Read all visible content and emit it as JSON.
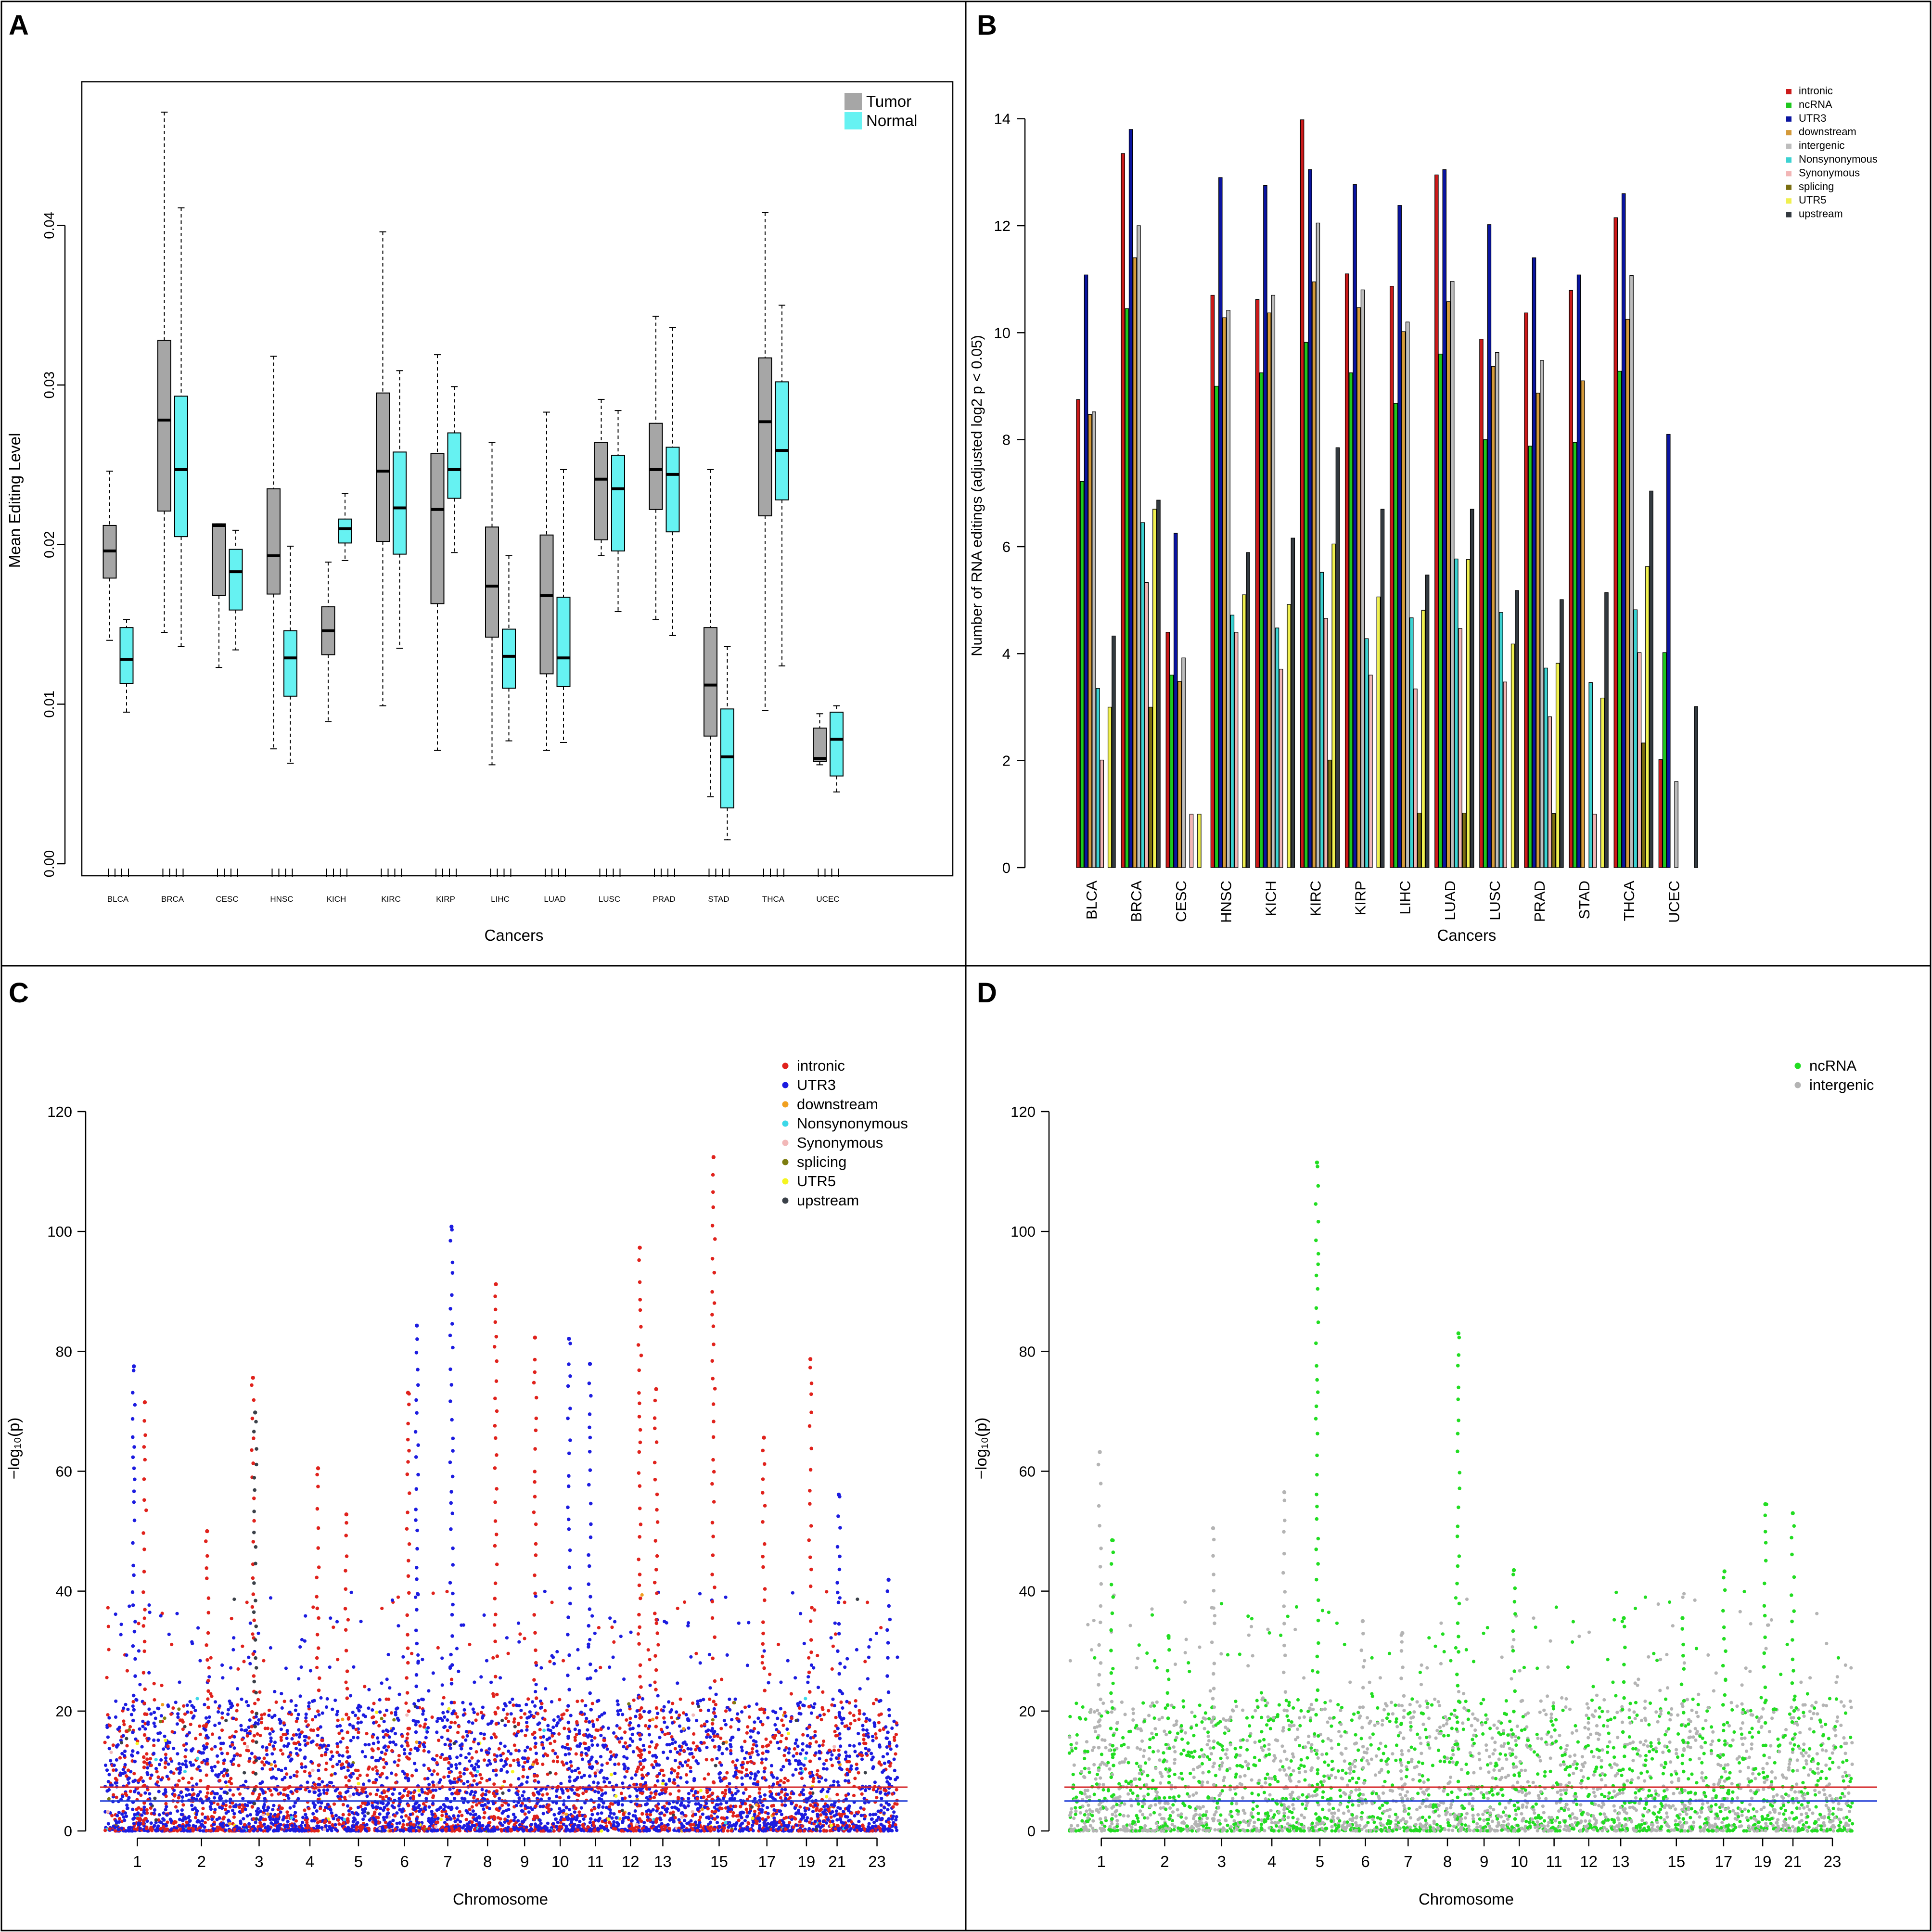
{
  "figure": {
    "panel_labels": [
      "A",
      "B",
      "C",
      "D"
    ]
  },
  "chart_data": [
    {
      "panel": "A",
      "type": "boxplot",
      "title": "",
      "xlabel": "Cancers",
      "ylabel": "Mean Editing Level",
      "ylim": [
        0,
        0.049
      ],
      "yticks": [
        0.0,
        0.01,
        0.02,
        0.03,
        0.04
      ],
      "ytick_labels": [
        "0.00",
        "0.01",
        "0.02",
        "0.03",
        "0.04"
      ],
      "legend": {
        "position": "top-right",
        "entries": [
          {
            "name": "Tumor",
            "color": "#a6a6a6"
          },
          {
            "name": "Normal",
            "color": "#66f2f2"
          }
        ]
      },
      "categories": [
        "BLCA",
        "BRCA",
        "CESC",
        "HNSC",
        "KICH",
        "KIRC",
        "KIRP",
        "LIHC",
        "LUAD",
        "LUSC",
        "PRAD",
        "STAD",
        "THCA",
        "UCEC"
      ],
      "series": [
        {
          "name": "Tumor",
          "color": "#a6a6a6",
          "boxes": [
            {
              "min": 0.014,
              "q1": 0.0179,
              "median": 0.0196,
              "q3": 0.0212,
              "max": 0.0246
            },
            {
              "min": 0.0145,
              "q1": 0.0221,
              "median": 0.0278,
              "q3": 0.0328,
              "max": 0.0471
            },
            {
              "min": 0.0123,
              "q1": 0.0168,
              "median": 0.0212,
              "q3": 0.0213,
              "max": 0.0213
            },
            {
              "min": 0.0072,
              "q1": 0.0169,
              "median": 0.0193,
              "q3": 0.0235,
              "max": 0.0318
            },
            {
              "min": 0.0089,
              "q1": 0.0131,
              "median": 0.0146,
              "q3": 0.0161,
              "max": 0.0189
            },
            {
              "min": 0.0099,
              "q1": 0.0202,
              "median": 0.0246,
              "q3": 0.0295,
              "max": 0.0396
            },
            {
              "min": 0.0071,
              "q1": 0.0163,
              "median": 0.0222,
              "q3": 0.0257,
              "max": 0.0319
            },
            {
              "min": 0.0062,
              "q1": 0.0142,
              "median": 0.0174,
              "q3": 0.0211,
              "max": 0.0264
            },
            {
              "min": 0.0071,
              "q1": 0.0119,
              "median": 0.0168,
              "q3": 0.0206,
              "max": 0.0283
            },
            {
              "min": 0.0193,
              "q1": 0.0203,
              "median": 0.0241,
              "q3": 0.0264,
              "max": 0.0291
            },
            {
              "min": 0.0153,
              "q1": 0.0222,
              "median": 0.0247,
              "q3": 0.0276,
              "max": 0.0343
            },
            {
              "min": 0.0042,
              "q1": 0.008,
              "median": 0.0112,
              "q3": 0.0148,
              "max": 0.0247
            },
            {
              "min": 0.0096,
              "q1": 0.0218,
              "median": 0.0277,
              "q3": 0.0317,
              "max": 0.0408
            },
            {
              "min": 0.0062,
              "q1": 0.0064,
              "median": 0.0066,
              "q3": 0.0085,
              "max": 0.0094
            }
          ]
        },
        {
          "name": "Normal",
          "color": "#66f2f2",
          "boxes": [
            {
              "min": 0.0095,
              "q1": 0.0113,
              "median": 0.0128,
              "q3": 0.0148,
              "max": 0.0153
            },
            {
              "min": 0.0136,
              "q1": 0.0205,
              "median": 0.0247,
              "q3": 0.0293,
              "max": 0.0411
            },
            {
              "min": 0.0134,
              "q1": 0.0159,
              "median": 0.0183,
              "q3": 0.0197,
              "max": 0.0209
            },
            {
              "min": 0.0063,
              "q1": 0.0105,
              "median": 0.0129,
              "q3": 0.0146,
              "max": 0.0199
            },
            {
              "min": 0.019,
              "q1": 0.0201,
              "median": 0.021,
              "q3": 0.0216,
              "max": 0.0232
            },
            {
              "min": 0.0135,
              "q1": 0.0194,
              "median": 0.0223,
              "q3": 0.0258,
              "max": 0.0309
            },
            {
              "min": 0.0195,
              "q1": 0.0229,
              "median": 0.0247,
              "q3": 0.027,
              "max": 0.0299
            },
            {
              "min": 0.0077,
              "q1": 0.011,
              "median": 0.013,
              "q3": 0.0147,
              "max": 0.0193
            },
            {
              "min": 0.0076,
              "q1": 0.0111,
              "median": 0.0129,
              "q3": 0.0167,
              "max": 0.0247
            },
            {
              "min": 0.0158,
              "q1": 0.0196,
              "median": 0.0235,
              "q3": 0.0256,
              "max": 0.0284
            },
            {
              "min": 0.0143,
              "q1": 0.0208,
              "median": 0.0244,
              "q3": 0.0261,
              "max": 0.0336
            },
            {
              "min": 0.0015,
              "q1": 0.0035,
              "median": 0.0067,
              "q3": 0.0097,
              "max": 0.0136
            },
            {
              "min": 0.0124,
              "q1": 0.0228,
              "median": 0.0259,
              "q3": 0.0302,
              "max": 0.035
            },
            {
              "min": 0.0045,
              "q1": 0.0055,
              "median": 0.0078,
              "q3": 0.0095,
              "max": 0.0099
            }
          ]
        }
      ]
    },
    {
      "panel": "B",
      "type": "bar",
      "title": "",
      "xlabel": "Cancers",
      "ylabel": "Number of RNA editings (adjusted log2 p < 0.05)",
      "ylim": [
        0,
        14.6
      ],
      "yticks": [
        0,
        2,
        4,
        6,
        8,
        10,
        12,
        14
      ],
      "ytick_labels": [
        "0",
        "2",
        "4",
        "6",
        "8",
        "10",
        "12",
        "14"
      ],
      "legend": {
        "position": "top-right"
      },
      "categories": [
        "BLCA",
        "BRCA",
        "CESC",
        "HNSC",
        "KICH",
        "KIRC",
        "KIRP",
        "LIHC",
        "LUAD",
        "LUSC",
        "PRAD",
        "STAD",
        "THCA",
        "UCEC"
      ],
      "series": [
        {
          "name": "intronic",
          "color": "#cc1a1a",
          "values": [
            8.75,
            13.35,
            4.4,
            10.7,
            10.62,
            13.98,
            11.1,
            10.87,
            12.95,
            9.88,
            10.37,
            10.79,
            12.15,
            2.02
          ]
        },
        {
          "name": "ncRNA",
          "color": "#1ec81e",
          "values": [
            7.22,
            10.45,
            3.6,
            9.0,
            9.25,
            9.82,
            9.25,
            8.68,
            9.6,
            8.0,
            7.88,
            7.95,
            9.28,
            4.02
          ]
        },
        {
          "name": "UTR3",
          "color": "#0a14a0",
          "values": [
            11.08,
            13.8,
            6.25,
            12.9,
            12.75,
            13.05,
            12.77,
            12.38,
            13.05,
            12.02,
            11.4,
            11.08,
            12.6,
            8.1
          ]
        },
        {
          "name": "downstream",
          "color": "#d49a3a",
          "values": [
            8.47,
            11.4,
            3.48,
            10.28,
            10.37,
            10.95,
            10.47,
            10.02,
            10.58,
            9.37,
            8.87,
            9.1,
            10.25,
            0
          ]
        },
        {
          "name": "intergenic",
          "color": "#bdbdbd",
          "values": [
            8.52,
            12.0,
            3.92,
            10.42,
            10.7,
            12.05,
            10.8,
            10.2,
            10.96,
            9.63,
            9.48,
            0,
            11.07,
            1.61
          ]
        },
        {
          "name": "Nonsynonymous",
          "color": "#3cd2d2",
          "values": [
            3.35,
            6.45,
            0,
            4.72,
            4.48,
            5.52,
            4.28,
            4.67,
            5.77,
            4.77,
            3.73,
            3.46,
            4.82,
            0
          ]
        },
        {
          "name": "Synonymous",
          "color": "#f2b6b6",
          "values": [
            2.01,
            5.33,
            1.0,
            4.4,
            3.71,
            4.66,
            3.6,
            3.34,
            4.47,
            3.47,
            2.82,
            1.0,
            4.02,
            0
          ]
        },
        {
          "name": "splicing",
          "color": "#7a6e10",
          "values": [
            0,
            3.0,
            0,
            0,
            0,
            2.01,
            0,
            1.02,
            1.02,
            0,
            1.01,
            0,
            2.33,
            0
          ]
        },
        {
          "name": "UTR5",
          "color": "#f0f050",
          "values": [
            3.0,
            6.7,
            1.0,
            5.1,
            4.92,
            6.05,
            5.06,
            4.81,
            5.76,
            4.18,
            3.82,
            3.17,
            5.63,
            0
          ]
        },
        {
          "name": "upstream",
          "color": "#333a40",
          "values": [
            4.33,
            6.87,
            0,
            5.89,
            6.16,
            7.85,
            6.7,
            5.47,
            6.7,
            5.18,
            5.01,
            5.14,
            7.04,
            3.01
          ]
        }
      ]
    },
    {
      "panel": "C",
      "type": "manhattan",
      "title": "",
      "xlabel": "Chromosome",
      "ylabel": "−log₁₀(p)",
      "ylim": [
        0,
        120
      ],
      "yticks": [
        0,
        20,
        40,
        60,
        80,
        100,
        120
      ],
      "ytick_labels": [
        "0",
        "20",
        "40",
        "60",
        "80",
        "100",
        "120"
      ],
      "chrom_ticks": [
        "1",
        "2",
        "3",
        "4",
        "5",
        "6",
        "7",
        "8",
        "9",
        "10",
        "11",
        "12",
        "13",
        "15",
        "17",
        "19",
        "21",
        "23"
      ],
      "thresholds": [
        {
          "value": 7.3,
          "color": "#d62728"
        },
        {
          "value": 5.0,
          "color": "#1f3bd6"
        }
      ],
      "legend": {
        "position": "top-right",
        "entries": [
          {
            "name": "intronic",
            "color": "#e0221c"
          },
          {
            "name": "UTR3",
            "color": "#1c1ce0"
          },
          {
            "name": "downstream",
            "color": "#f0a020"
          },
          {
            "name": "Nonsynonymous",
            "color": "#3cd8e8"
          },
          {
            "name": "Synonymous",
            "color": "#f2b8b8"
          },
          {
            "name": "splicing",
            "color": "#7d7d10"
          },
          {
            "name": "UTR5",
            "color": "#f5f520"
          },
          {
            "name": "upstream",
            "color": "#3a4048"
          }
        ]
      },
      "peaks": [
        {
          "chrom": "1",
          "value": 71.5,
          "category": "intronic"
        },
        {
          "chrom": "1",
          "value": 77.5,
          "category": "UTR3"
        },
        {
          "chrom": "2",
          "value": 50.0,
          "category": "intronic"
        },
        {
          "chrom": "3",
          "value": 75.6,
          "category": "intronic"
        },
        {
          "chrom": "3",
          "value": 69.8,
          "category": "upstream"
        },
        {
          "chrom": "4",
          "value": 60.5,
          "category": "intronic"
        },
        {
          "chrom": "5",
          "value": 52.8,
          "category": "intronic"
        },
        {
          "chrom": "6",
          "value": 73.1,
          "category": "intronic"
        },
        {
          "chrom": "6",
          "value": 84.3,
          "category": "UTR3"
        },
        {
          "chrom": "7",
          "value": 100.8,
          "category": "UTR3"
        },
        {
          "chrom": "8",
          "value": 91.2,
          "category": "intronic"
        },
        {
          "chrom": "9",
          "value": 82.3,
          "category": "intronic"
        },
        {
          "chrom": "10",
          "value": 82.1,
          "category": "UTR3"
        },
        {
          "chrom": "11",
          "value": 77.9,
          "category": "UTR3"
        },
        {
          "chrom": "12",
          "value": 97.3,
          "category": "intronic"
        },
        {
          "chrom": "13",
          "value": 73.7,
          "category": "intronic"
        },
        {
          "chrom": "15",
          "value": 112.4,
          "category": "intronic"
        },
        {
          "chrom": "17",
          "value": 65.6,
          "category": "intronic"
        },
        {
          "chrom": "19",
          "value": 78.7,
          "category": "intronic"
        },
        {
          "chrom": "21",
          "value": 56.1,
          "category": "UTR3"
        },
        {
          "chrom": "23",
          "value": 41.9,
          "category": "UTR3"
        }
      ]
    },
    {
      "panel": "D",
      "type": "manhattan",
      "title": "",
      "xlabel": "Chromosome",
      "ylabel": "−log₁₀(p)",
      "ylim": [
        0,
        120
      ],
      "yticks": [
        0,
        20,
        40,
        60,
        80,
        100,
        120
      ],
      "ytick_labels": [
        "0",
        "20",
        "40",
        "60",
        "80",
        "100",
        "120"
      ],
      "chrom_ticks": [
        "1",
        "2",
        "3",
        "4",
        "5",
        "6",
        "7",
        "8",
        "9",
        "10",
        "11",
        "12",
        "13",
        "15",
        "17",
        "19",
        "21",
        "23"
      ],
      "thresholds": [
        {
          "value": 7.3,
          "color": "#d62728"
        },
        {
          "value": 5.0,
          "color": "#1f3bd6"
        }
      ],
      "legend": {
        "position": "top-right",
        "entries": [
          {
            "name": "ncRNA",
            "color": "#22dd22"
          },
          {
            "name": "intergenic",
            "color": "#b4b4b4"
          }
        ]
      },
      "peaks": [
        {
          "chrom": "1",
          "value": 63.2,
          "category": "intergenic"
        },
        {
          "chrom": "1",
          "value": 48.5,
          "category": "ncRNA"
        },
        {
          "chrom": "2",
          "value": 32.5,
          "category": "ncRNA"
        },
        {
          "chrom": "3",
          "value": 50.5,
          "category": "intergenic"
        },
        {
          "chrom": "4",
          "value": 56.5,
          "category": "intergenic"
        },
        {
          "chrom": "5",
          "value": 111.5,
          "category": "ncRNA"
        },
        {
          "chrom": "6",
          "value": 35.0,
          "category": "intergenic"
        },
        {
          "chrom": "7",
          "value": 33.0,
          "category": "intergenic"
        },
        {
          "chrom": "8",
          "value": 83.0,
          "category": "ncRNA"
        },
        {
          "chrom": "10",
          "value": 43.5,
          "category": "ncRNA"
        },
        {
          "chrom": "13",
          "value": 35.5,
          "category": "ncRNA"
        },
        {
          "chrom": "15",
          "value": 35.5,
          "category": "ncRNA"
        },
        {
          "chrom": "17",
          "value": 43.3,
          "category": "ncRNA"
        },
        {
          "chrom": "19",
          "value": 54.5,
          "category": "ncRNA"
        },
        {
          "chrom": "21",
          "value": 53.0,
          "category": "ncRNA"
        }
      ]
    }
  ]
}
